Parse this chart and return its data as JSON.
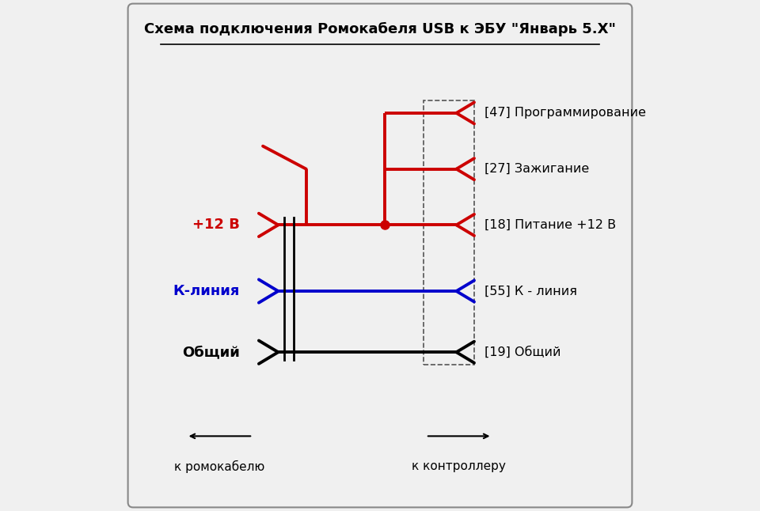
{
  "title": "Схема подключения Ромокабеля USB к ЭБУ \"Январь 5.Х\"",
  "bg_color": "#f0f0f0",
  "border_color": "#888888",
  "red": "#cc0000",
  "blue": "#0000cc",
  "black": "#000000",
  "lines": {
    "pin47_label": "[47] Программирование",
    "pin27_label": "[27] Зажигание",
    "pin18_label": "[18] Питание +12 В",
    "pin55_label": "[55] К - линия",
    "pin19_label": "[19] Общий"
  },
  "left_labels": {
    "v12": "+12 В",
    "kline": "К-линия",
    "common": "Общий"
  },
  "bottom_left_arrow": "к ромокабелю",
  "bottom_right_arrow": "к контроллеру",
  "figsize": [
    9.6,
    6.46
  ],
  "dpi": 100
}
